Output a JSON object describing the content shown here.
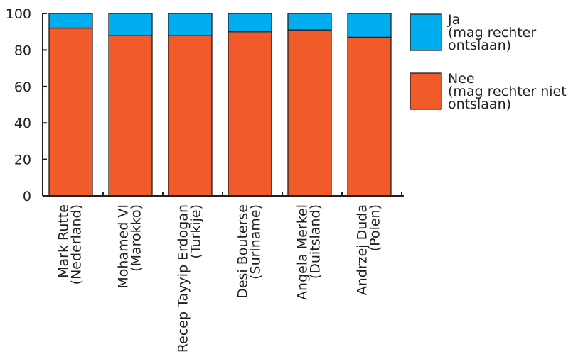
{
  "chart_data": {
    "type": "bar",
    "stacked": true,
    "categories": [
      [
        "Mark Rutte",
        "(Nederland)"
      ],
      [
        "Mohamed VI",
        "(Marokko)"
      ],
      [
        "Recep Tayyip Erdogan",
        "(Turkije)"
      ],
      [
        "Desi Bouterse",
        "(Suriname)"
      ],
      [
        "Angela Merkel",
        "(Duitsland)"
      ],
      [
        "Andrzej Duda",
        "(Polen)"
      ]
    ],
    "series": [
      {
        "name": "Nee",
        "label_lines": [
          "Nee",
          "(mag rechter niet",
          "ontslaan)"
        ],
        "color": "#f15a29",
        "values": [
          92,
          88,
          88,
          90,
          91,
          87
        ]
      },
      {
        "name": "Ja",
        "label_lines": [
          "Ja",
          "(mag rechter",
          "ontslaan)"
        ],
        "color": "#00aeef",
        "values": [
          8,
          12,
          12,
          10,
          9,
          13
        ]
      }
    ],
    "ylim": [
      0,
      100
    ],
    "yticks": [
      0,
      20,
      40,
      60,
      80,
      100
    ],
    "xlabel": "",
    "ylabel": "",
    "grid": false,
    "legend": "right"
  }
}
